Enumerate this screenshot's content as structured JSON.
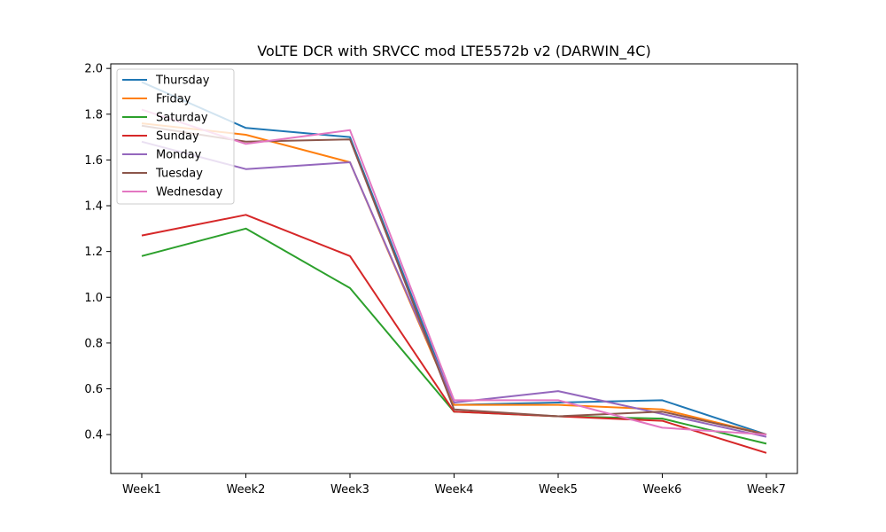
{
  "chart_data": {
    "type": "line",
    "title": "VoLTE DCR with SRVCC mod LTE5572b v2 (DARWIN_4C)",
    "xlabel": "",
    "ylabel": "",
    "categories": [
      "Week1",
      "Week2",
      "Week3",
      "Week4",
      "Week5",
      "Week6",
      "Week7"
    ],
    "ylim": [
      0.23,
      2.02
    ],
    "yticks": [
      0.4,
      0.6,
      0.8,
      1.0,
      1.2,
      1.4,
      1.6,
      1.8,
      2.0
    ],
    "ytick_labels": [
      "0.4",
      "0.6",
      "0.8",
      "1.0",
      "1.2",
      "1.4",
      "1.6",
      "1.8",
      "2.0"
    ],
    "grid": false,
    "legend_position": "top-left",
    "series": [
      {
        "name": "Thursday",
        "color": "#1f77b4",
        "values": [
          1.94,
          1.74,
          1.7,
          0.53,
          0.54,
          0.55,
          0.4
        ]
      },
      {
        "name": "Friday",
        "color": "#ff7f0e",
        "values": [
          1.76,
          1.71,
          1.59,
          0.53,
          0.53,
          0.51,
          0.4
        ]
      },
      {
        "name": "Saturday",
        "color": "#2ca02c",
        "values": [
          1.18,
          1.3,
          1.04,
          0.5,
          0.48,
          0.47,
          0.36
        ]
      },
      {
        "name": "Sunday",
        "color": "#d62728",
        "values": [
          1.27,
          1.36,
          1.18,
          0.5,
          0.48,
          0.46,
          0.32
        ]
      },
      {
        "name": "Monday",
        "color": "#9467bd",
        "values": [
          1.68,
          1.56,
          1.59,
          0.54,
          0.59,
          0.49,
          0.39
        ]
      },
      {
        "name": "Tuesday",
        "color": "#8c564b",
        "values": [
          1.75,
          1.68,
          1.69,
          0.51,
          0.48,
          0.5,
          0.4
        ]
      },
      {
        "name": "Wednesday",
        "color": "#e377c2",
        "values": [
          1.82,
          1.67,
          1.73,
          0.55,
          0.55,
          0.43,
          0.4
        ]
      }
    ]
  }
}
